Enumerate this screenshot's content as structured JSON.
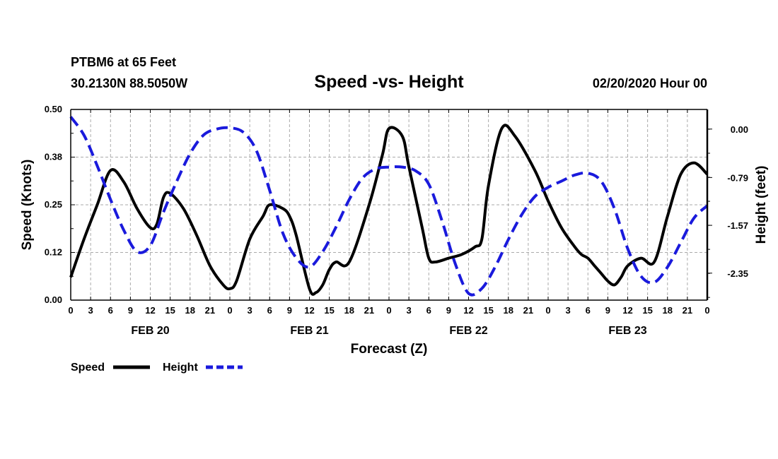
{
  "header": {
    "station": "PTBM6 at 65 Feet",
    "coords": "30.2130N 88.5050W",
    "datetime": "02/20/2020 Hour 00"
  },
  "chart_data": {
    "type": "line",
    "title": "Speed -vs- Height",
    "xlabel": "Forecast (Z)",
    "ylabel": "Speed (Knots)",
    "y2label": "Height (feet)",
    "x_unit": "forecast hour",
    "xlim": [
      0,
      96
    ],
    "ylim": [
      0,
      0.5
    ],
    "y2lim": [
      -2.79,
      0.32
    ],
    "grid": true,
    "legend_position": "bottom-left",
    "xticks": [
      0,
      3,
      6,
      9,
      12,
      15,
      18,
      21,
      24,
      27,
      30,
      33,
      36,
      39,
      42,
      45,
      48,
      51,
      54,
      57,
      60,
      63,
      66,
      69,
      72,
      75,
      78,
      81,
      84,
      87,
      90,
      93,
      96
    ],
    "xtick_labels": [
      "0",
      "3",
      "6",
      "9",
      "12",
      "15",
      "18",
      "21",
      "0",
      "3",
      "6",
      "9",
      "12",
      "15",
      "18",
      "21",
      "0",
      "3",
      "6",
      "9",
      "12",
      "15",
      "18",
      "21",
      "0",
      "3",
      "6",
      "9",
      "12",
      "15",
      "18",
      "21",
      "0"
    ],
    "day_labels": [
      {
        "x": 12,
        "label": "FEB 20"
      },
      {
        "x": 36,
        "label": "FEB 21"
      },
      {
        "x": 60,
        "label": "FEB 22"
      },
      {
        "x": 84,
        "label": "FEB 23"
      }
    ],
    "yticks": [
      0.0,
      0.125,
      0.25,
      0.375,
      0.5
    ],
    "ytick_labels": [
      "0.00",
      "0.12",
      "0.25",
      "0.38",
      "0.50"
    ],
    "y2ticks": [
      0.0,
      -0.79,
      -1.57,
      -2.35
    ],
    "y2tick_labels": [
      "0.00",
      "-0.79",
      "-1.57",
      "-2.35"
    ],
    "series": [
      {
        "name": "Speed",
        "axis": "left",
        "color": "#000000",
        "dash": "solid",
        "x": [
          0,
          2,
          4,
          6,
          8,
          10,
          12,
          13,
          14,
          15,
          17,
          19,
          21,
          23,
          24,
          25,
          27,
          29,
          30,
          32,
          33,
          34,
          36,
          37,
          38,
          39,
          40,
          42,
          45,
          47,
          48,
          50,
          51,
          53,
          54,
          55,
          57,
          59,
          61,
          62,
          63,
          65,
          67,
          70,
          72,
          74,
          76,
          77,
          78,
          79,
          80,
          81,
          82,
          83,
          84,
          86,
          88,
          90,
          92,
          94,
          96
        ],
        "y": [
          0.06,
          0.16,
          0.25,
          0.34,
          0.31,
          0.24,
          0.19,
          0.2,
          0.27,
          0.28,
          0.24,
          0.17,
          0.09,
          0.04,
          0.03,
          0.05,
          0.16,
          0.22,
          0.25,
          0.24,
          0.22,
          0.17,
          0.03,
          0.02,
          0.04,
          0.08,
          0.1,
          0.1,
          0.25,
          0.38,
          0.45,
          0.43,
          0.35,
          0.19,
          0.11,
          0.1,
          0.11,
          0.12,
          0.14,
          0.16,
          0.3,
          0.45,
          0.43,
          0.34,
          0.26,
          0.19,
          0.14,
          0.12,
          0.11,
          0.09,
          0.07,
          0.05,
          0.04,
          0.06,
          0.09,
          0.11,
          0.1,
          0.22,
          0.33,
          0.36,
          0.33
        ]
      },
      {
        "name": "Height",
        "axis": "right",
        "color": "#1a1adc",
        "dash": "dashed",
        "x": [
          0,
          2,
          4,
          6,
          8,
          10,
          12,
          14,
          16,
          18,
          20,
          22,
          24,
          26,
          28,
          30,
          32,
          34,
          36,
          38,
          40,
          42,
          44,
          46,
          48,
          50,
          52,
          54,
          56,
          58,
          60,
          62,
          64,
          66,
          68,
          70,
          72,
          74,
          76,
          78,
          80,
          82,
          84,
          86,
          88,
          90,
          92,
          94,
          96
        ],
        "y": [
          0.2,
          -0.1,
          -0.6,
          -1.15,
          -1.65,
          -2.0,
          -1.9,
          -1.35,
          -0.85,
          -0.4,
          -0.1,
          0.0,
          0.02,
          -0.05,
          -0.35,
          -1.0,
          -1.7,
          -2.1,
          -2.25,
          -2.0,
          -1.6,
          -1.15,
          -0.8,
          -0.65,
          -0.62,
          -0.62,
          -0.68,
          -0.9,
          -1.5,
          -2.2,
          -2.68,
          -2.6,
          -2.25,
          -1.8,
          -1.4,
          -1.1,
          -0.95,
          -0.85,
          -0.75,
          -0.72,
          -0.85,
          -1.3,
          -1.95,
          -2.4,
          -2.5,
          -2.25,
          -1.85,
          -1.45,
          -1.25
        ]
      }
    ]
  }
}
